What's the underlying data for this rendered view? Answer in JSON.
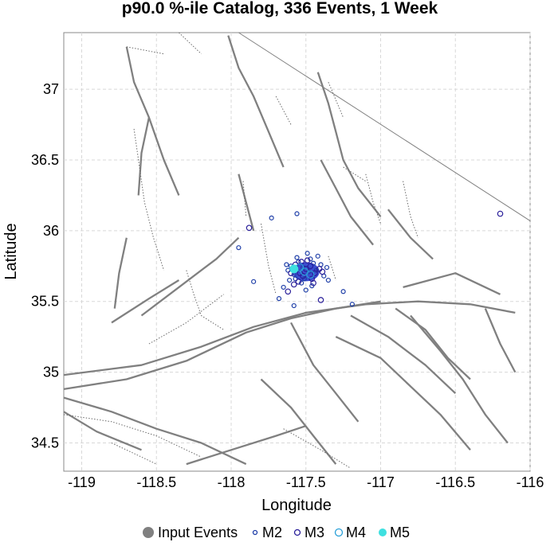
{
  "chart_data": {
    "type": "scatter",
    "title": "p90.0 %-ile Catalog, 336 Events, 1 Week",
    "xlabel": "Longitude",
    "ylabel": "Latitude",
    "xlim": [
      -119.12,
      -116
    ],
    "ylim": [
      34.3,
      37.4
    ],
    "xticks": [
      -119,
      -118.5,
      -118,
      -117.5,
      -117,
      -116.5,
      -116
    ],
    "xtick_labels": [
      "-119",
      "-118.5",
      "-118",
      "-117.5",
      "-117",
      "-116.5",
      "-116"
    ],
    "yticks": [
      34.5,
      35,
      35.5,
      36,
      36.5,
      37
    ],
    "ytick_labels": [
      "34.5",
      "35",
      "35.5",
      "36",
      "36.5",
      "37"
    ],
    "grid": true,
    "legend_position": "bottom",
    "legend": [
      {
        "label": "Input Events",
        "marker": "filled-circle",
        "color": "#808080"
      },
      {
        "label": "M2",
        "marker": "small-open-circle",
        "color": "#1f3fa8"
      },
      {
        "label": "M3",
        "marker": "open-circle",
        "color": "#2a1f9a"
      },
      {
        "label": "M4",
        "marker": "open-circle",
        "color": "#2aa0d8"
      },
      {
        "label": "M5",
        "marker": "filled-circle",
        "color": "#3ee0e0"
      }
    ],
    "series": [
      {
        "name": "M2",
        "color": "#1f3fa8",
        "points": [
          [
            -117.55,
            35.78
          ],
          [
            -117.52,
            35.74
          ],
          [
            -117.48,
            35.71
          ],
          [
            -117.45,
            35.77
          ],
          [
            -117.58,
            35.69
          ],
          [
            -117.51,
            35.66
          ],
          [
            -117.43,
            35.72
          ],
          [
            -117.56,
            35.81
          ],
          [
            -117.47,
            35.8
          ],
          [
            -117.6,
            35.75
          ],
          [
            -117.4,
            35.76
          ],
          [
            -117.53,
            35.63
          ],
          [
            -117.65,
            35.6
          ],
          [
            -117.62,
            35.72
          ],
          [
            -117.38,
            35.68
          ],
          [
            -117.35,
            35.65
          ],
          [
            -117.68,
            35.52
          ],
          [
            -117.58,
            35.47
          ],
          [
            -117.25,
            35.57
          ],
          [
            -117.19,
            35.48
          ],
          [
            -117.73,
            36.09
          ],
          [
            -117.56,
            36.12
          ],
          [
            -117.85,
            35.64
          ],
          [
            -117.95,
            35.88
          ],
          [
            -117.5,
            35.58
          ],
          [
            -117.46,
            35.61
          ],
          [
            -117.63,
            35.76
          ],
          [
            -117.42,
            35.82
          ],
          [
            -117.49,
            35.84
          ],
          [
            -117.57,
            35.66
          ],
          [
            -117.36,
            35.74
          ],
          [
            -117.61,
            35.65
          ]
        ]
      },
      {
        "name": "M3",
        "color": "#2a1f9a",
        "points": [
          [
            -117.5,
            35.73
          ],
          [
            -117.54,
            35.7
          ],
          [
            -117.47,
            35.75
          ],
          [
            -117.52,
            35.68
          ],
          [
            -117.44,
            35.7
          ],
          [
            -117.57,
            35.76
          ],
          [
            -117.49,
            35.79
          ],
          [
            -117.41,
            35.73
          ],
          [
            -117.6,
            35.7
          ],
          [
            -117.46,
            35.66
          ],
          [
            -117.55,
            35.64
          ],
          [
            -117.39,
            35.71
          ],
          [
            -117.88,
            36.02
          ],
          [
            -116.2,
            36.12
          ],
          [
            -117.4,
            35.51
          ],
          [
            -117.62,
            35.57
          ],
          [
            -117.53,
            35.78
          ],
          [
            -117.45,
            35.63
          ],
          [
            -117.58,
            35.62
          ]
        ]
      },
      {
        "name": "M4",
        "color": "#2aa0d8",
        "points": [
          [
            -117.51,
            35.71
          ],
          [
            -117.47,
            35.69
          ],
          [
            -117.54,
            35.74
          ]
        ]
      },
      {
        "name": "M5",
        "color": "#3ee0e0",
        "points": [
          [
            -117.58,
            35.73
          ]
        ]
      }
    ],
    "dense_cluster": {
      "center": [
        -117.5,
        35.71
      ],
      "color": "#1a2fc8"
    }
  }
}
